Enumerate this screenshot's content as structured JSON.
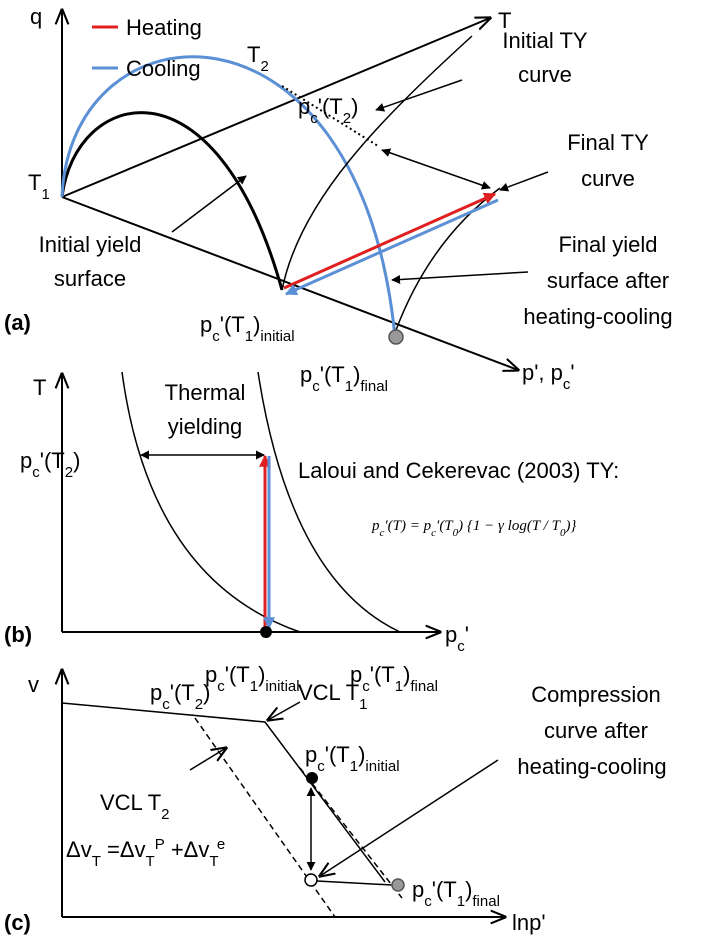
{
  "panel_a": {
    "letter": "(a)",
    "axis_q": "q",
    "axis_t": "T",
    "axis_p": [
      "p', p",
      "c",
      "'"
    ],
    "legend": [
      "Heating",
      "Cooling"
    ],
    "t1": [
      "T",
      "1"
    ],
    "t2": [
      "T",
      "2"
    ],
    "pc_t2": [
      "p",
      "c",
      "'(T",
      "2",
      ")"
    ],
    "initial_ty": [
      "Initial TY",
      "curve"
    ],
    "final_ty": [
      "Final TY",
      "curve"
    ],
    "final_yield": [
      "Final yield",
      "surface after",
      "heating-cooling"
    ],
    "initial_yield": [
      "Initial yield",
      "surface"
    ],
    "pc_t1_initial": [
      "p",
      "c",
      "'(T",
      "1",
      ")",
      "initial"
    ],
    "pc_t1_final": [
      "p",
      "c",
      "'(T",
      "1",
      ")",
      "final"
    ]
  },
  "panel_b": {
    "letter": "(b)",
    "axis_t": "T",
    "axis_p": [
      "p",
      "c",
      "'"
    ],
    "thermal_yielding": [
      "Thermal",
      "yielding"
    ],
    "pc_t2": [
      "p",
      "c",
      "'(T",
      "2",
      ")"
    ],
    "reference": "Laloui and Cekerevac (2003) TY:",
    "formula": [
      "p",
      "c",
      "′(T) = p",
      "c",
      "′(T",
      "0",
      ") {1 − γ log(T / T",
      "0",
      ")}"
    ],
    "pc_t1_initial": [
      "p",
      "c",
      "'(T",
      "1",
      ")",
      "initial"
    ],
    "pc_t1_final": [
      "p",
      "c",
      "'(T",
      "1",
      ")",
      "final"
    ]
  },
  "panel_c": {
    "letter": "(c)",
    "axis_v": "v",
    "axis_p": "lnp'",
    "pc_t2": [
      "p",
      "c",
      "'(T",
      "2",
      ")"
    ],
    "vcl_t1": [
      "VCL T",
      "1"
    ],
    "vcl_t2": [
      "VCL T",
      "2"
    ],
    "pc_t1_initial": [
      "p",
      "c",
      "'(T",
      "1",
      ")",
      "initial"
    ],
    "pc_t1_final": [
      "p",
      "c",
      "'(T",
      "1",
      ")",
      "final"
    ],
    "compression": [
      "Compression",
      "curve after",
      "heating-cooling"
    ],
    "delta_v": [
      "Δv",
      "T",
      " =Δv",
      "T",
      "P",
      " +Δv",
      "T",
      "e"
    ]
  }
}
